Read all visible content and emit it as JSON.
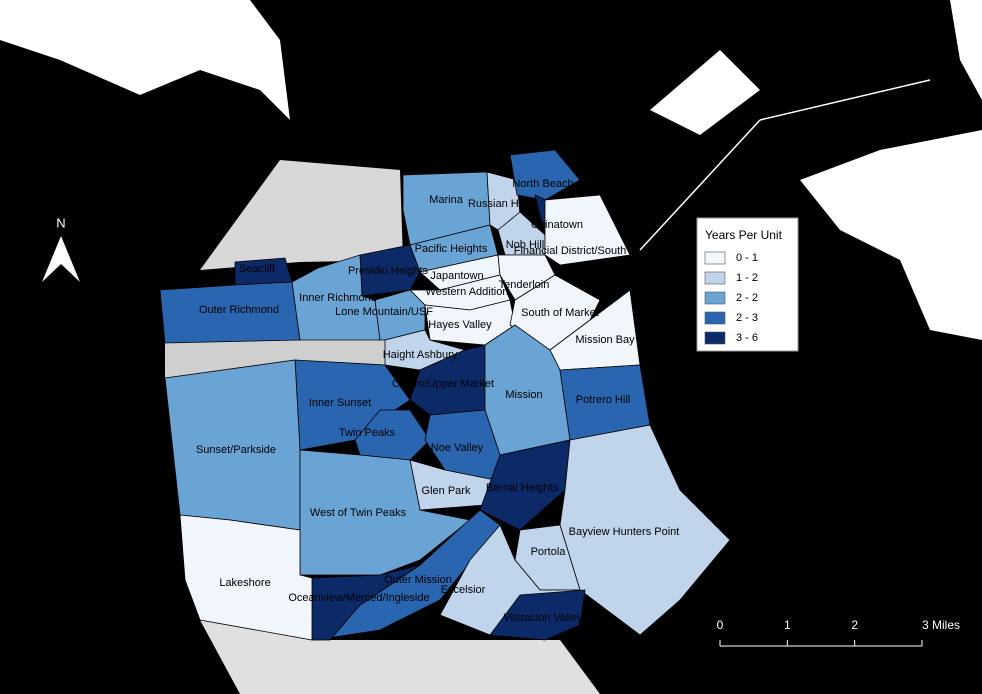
{
  "map": {
    "north_label": "N",
    "legend": {
      "title": "Years Per Unit",
      "entries": [
        {
          "label": "0 - 1",
          "color": "#f0f6fc"
        },
        {
          "label": "1 - 2",
          "color": "#c0d5eb"
        },
        {
          "label": "2 - 2",
          "color": "#6aa4d4"
        },
        {
          "label": "2 - 3",
          "color": "#2a66b0"
        },
        {
          "label": "3 - 6",
          "color": "#0d2a68"
        }
      ]
    },
    "scale_bar": {
      "ticks": [
        0,
        1,
        2,
        {
          "value": 3,
          "label": "3 Miles"
        }
      ]
    },
    "neighborhoods": [
      {
        "name": "Marina",
        "color": "#6aa4d4"
      },
      {
        "name": "Russian Hill",
        "color": "#c0d5eb"
      },
      {
        "name": "North Beach",
        "color": "#2a66b0"
      },
      {
        "name": "Chinatown",
        "color": "#0d2a68"
      },
      {
        "name": "Nob Hill",
        "color": "#c0d5eb"
      },
      {
        "name": "Financial District/South",
        "color": "#f0f6fc"
      },
      {
        "name": "Pacific Heights",
        "color": "#6aa4d4"
      },
      {
        "name": "Presidio Heights",
        "color": "#0d2a68"
      },
      {
        "name": "Seacliff",
        "color": "#0d2a68"
      },
      {
        "name": "Outer Richmond",
        "color": "#2a66b0"
      },
      {
        "name": "Inner Richmond",
        "color": "#6aa4d4"
      },
      {
        "name": "Japantown",
        "color": "#f0f6fc"
      },
      {
        "name": "Western Addition",
        "color": "#f0f6fc"
      },
      {
        "name": "Tenderloin",
        "color": "#f0f6fc"
      },
      {
        "name": "Lone Mountain/USF",
        "color": "#6aa4d4"
      },
      {
        "name": "Hayes Valley",
        "color": "#f0f6fc"
      },
      {
        "name": "South of Market",
        "color": "#f0f6fc"
      },
      {
        "name": "Mission Bay",
        "color": "#f0f6fc"
      },
      {
        "name": "Haight Ashbury",
        "color": "#c0d5eb"
      },
      {
        "name": "Castro/Upper Market",
        "color": "#0d2a68"
      },
      {
        "name": "Mission",
        "color": "#6aa4d4"
      },
      {
        "name": "Potrero Hill",
        "color": "#2a66b0"
      },
      {
        "name": "Inner Sunset",
        "color": "#2a66b0"
      },
      {
        "name": "Twin Peaks",
        "color": "#2a66b0"
      },
      {
        "name": "Noe Valley",
        "color": "#2a66b0"
      },
      {
        "name": "Sunset/Parkside",
        "color": "#6aa4d4"
      },
      {
        "name": "Glen Park",
        "color": "#c0d5eb"
      },
      {
        "name": "Bernal Heights",
        "color": "#0d2a68"
      },
      {
        "name": "West of Twin Peaks",
        "color": "#6aa4d4"
      },
      {
        "name": "Bayview Hunters Point",
        "color": "#c0d5eb"
      },
      {
        "name": "Portola",
        "color": "#c0d5eb"
      },
      {
        "name": "Outer Mission",
        "color": "#2a66b0"
      },
      {
        "name": "Excelsior",
        "color": "#c0d5eb"
      },
      {
        "name": "Oceanview/Merced/Ingleside",
        "color": "#0d2a68"
      },
      {
        "name": "Visitacion Valley",
        "color": "#0d2a68"
      },
      {
        "name": "Lakeshore",
        "color": "#f0f6fc"
      }
    ]
  }
}
